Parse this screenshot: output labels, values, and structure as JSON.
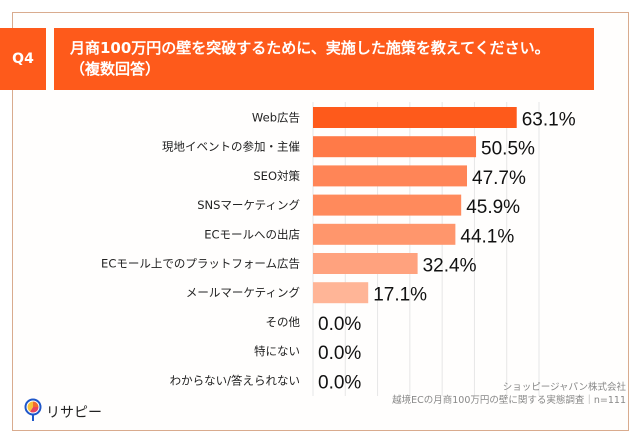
{
  "header": {
    "badge": "Q4",
    "title_line1": "月商100万円の壁を突破するために、実施した施策を教えてください。",
    "title_line2": "（複数回答）"
  },
  "colors": {
    "accent": "#fe5a1b",
    "frame": "#d9ab8e",
    "gridline": "#e6e6e6",
    "bars": [
      "#fe5a1b",
      "#ff7a48",
      "#ff8557",
      "#ff8a5c",
      "#ff966c",
      "#ffa27e",
      "#ffb597",
      "#ffc2a8",
      "#ffc2a8",
      "#ffc2a8"
    ]
  },
  "chart_data": {
    "type": "bar",
    "orientation": "horizontal",
    "title": "月商100万円の壁を突破するために、実施した施策を教えてください。（複数回答）",
    "categories": [
      "Web広告",
      "現地イベントの参加・主催",
      "SEO対策",
      "SNSマーケティング",
      "ECモールへの出店",
      "ECモール上でのプラットフォーム広告",
      "メールマーケティング",
      "その他",
      "特にない",
      "わからない/答えられない"
    ],
    "values": [
      63.1,
      50.5,
      47.7,
      45.9,
      44.1,
      32.4,
      17.1,
      0.0,
      0.0,
      0.0
    ],
    "value_labels": [
      "63.1%",
      "50.5%",
      "47.7%",
      "45.9%",
      "44.1%",
      "32.4%",
      "17.1%",
      "0.0%",
      "0.0%",
      "0.0%"
    ],
    "unit": "%",
    "xlim": [
      0,
      70
    ],
    "grid_step": 10,
    "grid": true,
    "legend": "none",
    "xlabel": "",
    "ylabel": ""
  },
  "footnote": {
    "line1": "ショッピージャパン株式会社",
    "line2": "越境ECの月商100万円の壁に関する実態調査｜n=111"
  },
  "logo": {
    "icon": "pin-pie-chart-icon",
    "text": "リサピー"
  }
}
